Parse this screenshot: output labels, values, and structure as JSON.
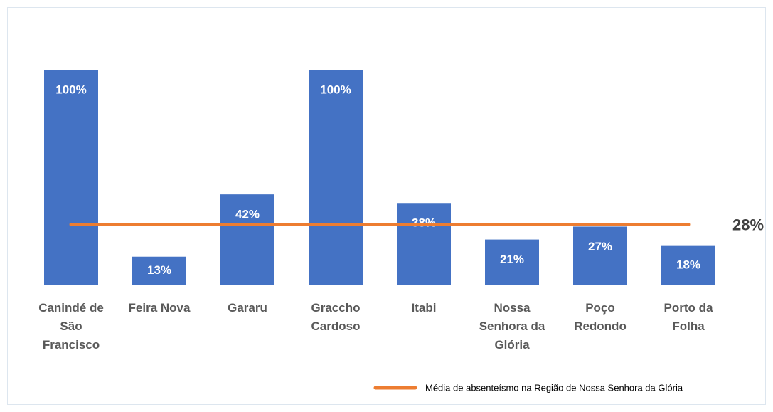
{
  "chart_data": {
    "type": "bar",
    "categories": [
      "Canindé de São Francisco",
      "Feira Nova",
      "Gararu",
      "Graccho Cardoso",
      "Itabi",
      "Nossa Senhora da Glória",
      "Poço Redondo",
      "Porto da Folha"
    ],
    "values": [
      100,
      13,
      42,
      100,
      38,
      21,
      27,
      18
    ],
    "value_labels": [
      "100%",
      "13%",
      "42%",
      "100%",
      "38%",
      "21%",
      "27%",
      "18%"
    ],
    "color": "#4472c4",
    "reference_line": {
      "name": "Média de absenteísmo na Região de Nossa Senhora da Glória",
      "value": 28,
      "label": "28%",
      "color": "#ed7d31"
    }
  }
}
